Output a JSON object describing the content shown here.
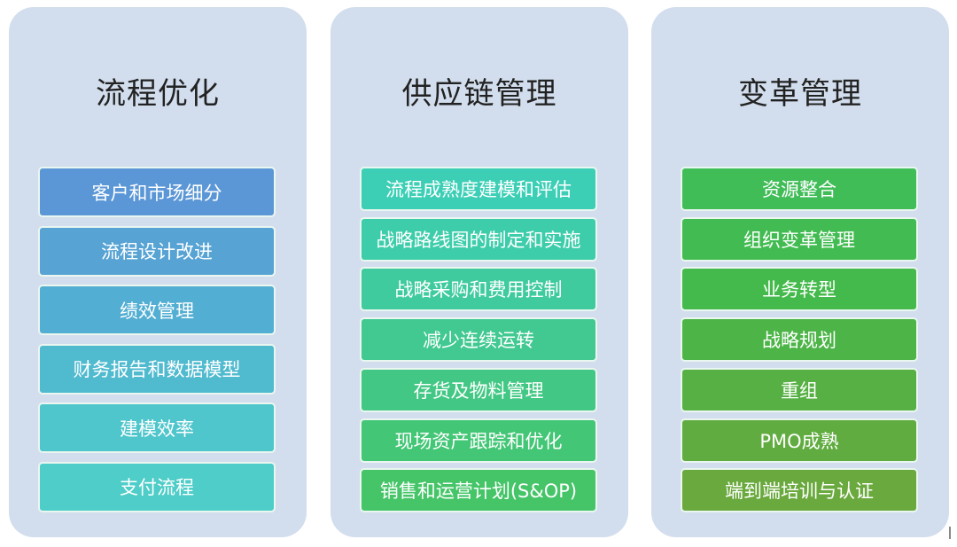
{
  "columns": [
    {
      "title": "流程优化",
      "items": [
        "客户和市场细分",
        "流程设计改进",
        "绩效管理",
        "财务报告和数据模型",
        "建模效率",
        "支付流程"
      ],
      "colors": [
        "#5b97d6",
        "#57a3d4",
        "#52aed2",
        "#50bacf",
        "#4fc5cc",
        "#4fcdc8"
      ]
    },
    {
      "title": "供应链管理",
      "items": [
        "流程成熟度建模和评估",
        "战略路线图的制定和实施",
        "战略采购和费用控制",
        "减少连续运转",
        "存货及物料管理",
        "现场资产跟踪和优化",
        "销售和运营计划(S&OP)"
      ],
      "colors": [
        "#3ccfb6",
        "#3dcdaa",
        "#3fcb9e",
        "#41c991",
        "#42c884",
        "#43c676",
        "#45c568"
      ]
    },
    {
      "title": "变革管理",
      "items": [
        "资源整合",
        "组织变革管理",
        "业务转型",
        "战略规划",
        "重组",
        "PMO成熟",
        "端到端培训与认证"
      ],
      "colors": [
        "#41bd58",
        "#42bc52",
        "#45ba4c",
        "#4db548",
        "#57b043",
        "#61ac40",
        "#6aa93e"
      ]
    }
  ]
}
